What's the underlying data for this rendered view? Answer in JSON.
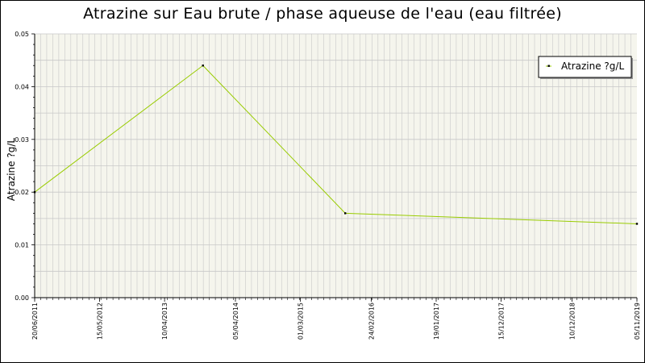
{
  "chart_data": {
    "type": "line",
    "title": "Atrazine sur Eau brute / phase aqueuse de l'eau (eau filtrée)",
    "ylabel": "Atrazine ?g/L",
    "xlabel": "",
    "ylim": [
      0,
      0.05
    ],
    "yticks": [
      "0.00",
      "0.01",
      "0.02",
      "0.03",
      "0.04",
      "0.05"
    ],
    "xlim": [
      "2011-06-20",
      "2019-11-05"
    ],
    "xtick_labels": [
      {
        "date": "2011-06-20",
        "label": "20/06/2011"
      },
      {
        "date": "2012-05-15",
        "label": "15/05/2012"
      },
      {
        "date": "2013-04-10",
        "label": "10/04/2013"
      },
      {
        "date": "2014-04-05",
        "label": "05/04/2014"
      },
      {
        "date": "2015-03-01",
        "label": "01/03/2015"
      },
      {
        "date": "2016-02-24",
        "label": "24/02/2016"
      },
      {
        "date": "2017-01-19",
        "label": "19/01/2017"
      },
      {
        "date": "2017-12-15",
        "label": "15/12/2017"
      },
      {
        "date": "2018-12-10",
        "label": "10/12/2018"
      },
      {
        "date": "2019-11-05",
        "label": "05/11/2019"
      }
    ],
    "series": [
      {
        "name": "Atrazine ?g/L",
        "color": "#99cc00",
        "points": [
          {
            "x": "2011-06-20",
            "y": 0.02
          },
          {
            "x": "2013-10-22",
            "y": 0.044
          },
          {
            "x": "2015-10-15",
            "y": 0.016
          },
          {
            "x": "2019-11-05",
            "y": 0.014
          }
        ]
      }
    ],
    "grid": true,
    "legend_position": "top-right",
    "plot_background": "#f5f5ed",
    "grid_color": "#c8c8c8"
  }
}
